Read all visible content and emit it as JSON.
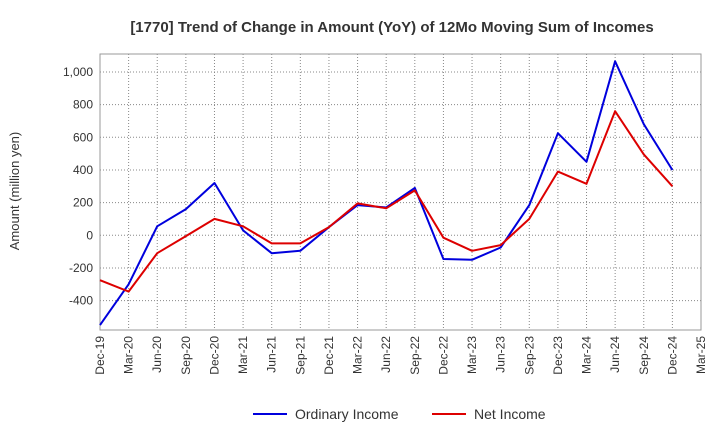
{
  "chart_data": {
    "type": "line",
    "title": "[1770]  Trend of Change in Amount (YoY) of 12Mo Moving Sum of Incomes",
    "xlabel": "",
    "ylabel": "Amount (million yen)",
    "categories": [
      "Dec-19",
      "Mar-20",
      "Jun-20",
      "Sep-20",
      "Dec-20",
      "Mar-21",
      "Jun-21",
      "Sep-21",
      "Dec-21",
      "Mar-22",
      "Jun-22",
      "Sep-22",
      "Dec-22",
      "Mar-23",
      "Jun-23",
      "Sep-23",
      "Dec-23",
      "Mar-24",
      "Jun-24",
      "Sep-24",
      "Dec-24",
      "Mar-25"
    ],
    "y_ticks": [
      -400,
      -200,
      0,
      200,
      400,
      600,
      800,
      1000
    ],
    "y_tick_labels": [
      "-400",
      "-200",
      "0",
      "200",
      "400",
      "600",
      "800",
      "1,000"
    ],
    "ylim": [
      -580,
      1110
    ],
    "grid": true,
    "legend_position": "bottom-center",
    "series": [
      {
        "name": "Ordinary Income",
        "color": "#0000dd",
        "values": [
          -550,
          -300,
          55,
          160,
          320,
          30,
          -110,
          -95,
          50,
          185,
          170,
          290,
          -145,
          -150,
          -75,
          185,
          625,
          450,
          1065,
          680,
          400,
          null
        ]
      },
      {
        "name": "Net Income",
        "color": "#dd0000",
        "values": [
          -275,
          -345,
          -110,
          -5,
          100,
          55,
          -50,
          -50,
          50,
          195,
          165,
          275,
          -15,
          -95,
          -60,
          100,
          390,
          315,
          760,
          495,
          300,
          null
        ]
      }
    ]
  }
}
